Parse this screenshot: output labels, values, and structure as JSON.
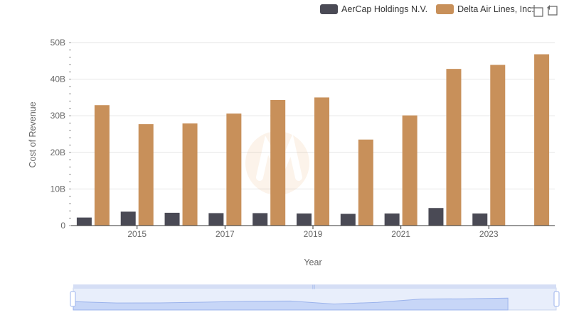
{
  "legend": [
    {
      "label": "AerCap Holdings N.V.",
      "color": "#4a4a55"
    },
    {
      "label": "Delta Air Lines, Inc.",
      "color": "#c8905a"
    }
  ],
  "toolbox": {
    "zoom_icon": "zoom-select-icon",
    "restore_icon": "restore-icon"
  },
  "chart_data": {
    "type": "bar",
    "x": [
      2014,
      2015,
      2016,
      2017,
      2018,
      2019,
      2020,
      2021,
      2022,
      2023,
      2024
    ],
    "tick_labels": [
      "2015",
      "2017",
      "2019",
      "2021",
      "2023"
    ],
    "y_tick_labels": [
      "0",
      "10B",
      "20B",
      "30B",
      "40B",
      "50B"
    ],
    "ylim": [
      0,
      50
    ],
    "xlabel": "Year",
    "ylabel": "Cost of Revenue",
    "series": [
      {
        "name": "AerCap Holdings N.V.",
        "color": "#4a4a55",
        "values": [
          2.2,
          3.8,
          3.5,
          3.4,
          3.4,
          3.3,
          3.2,
          3.3,
          4.8,
          3.3,
          null
        ]
      },
      {
        "name": "Delta Air Lines, Inc.",
        "color": "#c8905a",
        "values": [
          32.9,
          27.7,
          27.9,
          30.6,
          34.3,
          35.0,
          23.5,
          30.1,
          42.8,
          43.9,
          46.8
        ]
      }
    ],
    "grid": true,
    "legend_position": "top-right",
    "datazoom": true
  }
}
